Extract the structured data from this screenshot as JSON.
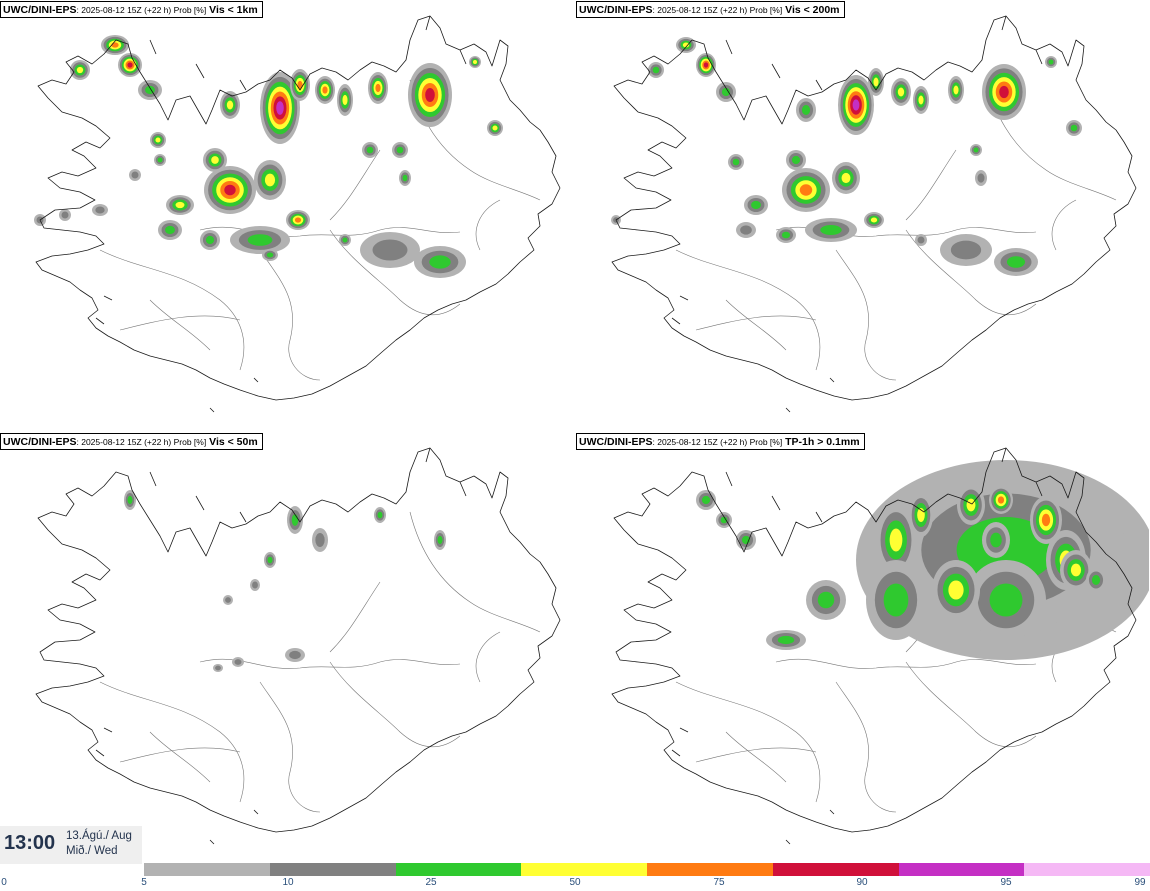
{
  "panels": [
    {
      "id": "vis1km",
      "model": "UWC/DINI-EPS",
      "meta": ": 2025-08-12 15Z (+22 h) Prob [%]",
      "variable": "Vis < 1km"
    },
    {
      "id": "vis200m",
      "model": "UWC/DINI-EPS",
      "meta": ": 2025-08-12 15Z (+22 h) Prob [%]",
      "variable": "Vis < 200m"
    },
    {
      "id": "vis50m",
      "model": "UWC/DINI-EPS",
      "meta": ": 2025-08-12 15Z (+22 h) Prob [%]",
      "variable": "Vis < 50m"
    },
    {
      "id": "tp1h",
      "model": "UWC/DINI-EPS",
      "meta": ": 2025-08-12 15Z (+22 h) Prob [%]",
      "variable": "TP-1h > 0.1mm"
    }
  ],
  "time": {
    "clock": "13:00",
    "date_line1": "13.Ágú./ Aug",
    "date_line2": "Mið./ Wed"
  },
  "legend": {
    "ticks": [
      "0",
      "5",
      "10",
      "25",
      "50",
      "75",
      "90",
      "95",
      "99"
    ],
    "colors": [
      "#b2b2b2",
      "#808080",
      "#2fc92f",
      "#ffff33",
      "#ff7b12",
      "#d0103a",
      "#c42fc4",
      "#f5b8f5"
    ]
  },
  "colors": {
    "coastline": "#1a1a1a",
    "boundary": "#777777",
    "clock_text": "#23334d",
    "tick_text": "#2a4f7a"
  }
}
